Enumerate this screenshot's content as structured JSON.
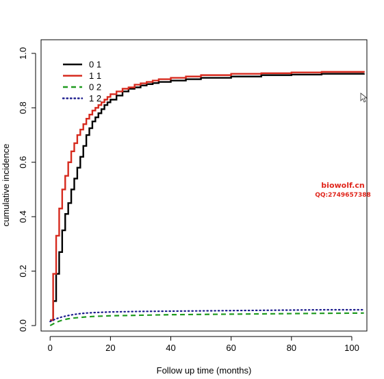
{
  "chart_data": {
    "type": "line",
    "title": "",
    "xlabel": "Follow up time (months)",
    "ylabel": "cumulative incidence",
    "xlim": [
      -3,
      105
    ],
    "ylim": [
      -0.02,
      1.05
    ],
    "xticks": [
      0,
      20,
      40,
      60,
      80,
      100
    ],
    "yticks": [
      0.0,
      0.2,
      0.4,
      0.6,
      0.8,
      1.0
    ],
    "ytick_labels": [
      "0.0",
      "0.2",
      "0.4",
      "0.6",
      "0.8",
      "1.0"
    ],
    "grid": false,
    "legend_position": "top-left",
    "series": [
      {
        "name": "0 1",
        "color": "#000000",
        "style": "solid-step",
        "x": [
          0,
          1,
          2,
          3,
          4,
          5,
          6,
          7,
          8,
          9,
          10,
          11,
          12,
          13,
          14,
          15,
          16,
          17,
          18,
          19,
          20,
          22,
          24,
          26,
          28,
          30,
          32,
          34,
          36,
          40,
          45,
          50,
          60,
          70,
          80,
          90,
          104
        ],
        "y": [
          0.02,
          0.09,
          0.19,
          0.27,
          0.35,
          0.41,
          0.45,
          0.5,
          0.54,
          0.58,
          0.62,
          0.66,
          0.7,
          0.725,
          0.75,
          0.765,
          0.78,
          0.795,
          0.81,
          0.82,
          0.83,
          0.845,
          0.86,
          0.87,
          0.875,
          0.882,
          0.887,
          0.891,
          0.895,
          0.9,
          0.905,
          0.91,
          0.915,
          0.92,
          0.922,
          0.925,
          0.927
        ]
      },
      {
        "name": "1 1",
        "color": "#d62a1e",
        "style": "solid-step",
        "x": [
          0,
          1,
          2,
          3,
          4,
          5,
          6,
          7,
          8,
          9,
          10,
          11,
          12,
          13,
          14,
          15,
          16,
          17,
          18,
          19,
          20,
          22,
          24,
          26,
          28,
          30,
          32,
          34,
          36,
          40,
          45,
          50,
          60,
          70,
          80,
          90,
          104
        ],
        "y": [
          0.02,
          0.19,
          0.33,
          0.43,
          0.5,
          0.55,
          0.6,
          0.64,
          0.67,
          0.7,
          0.72,
          0.74,
          0.76,
          0.775,
          0.79,
          0.8,
          0.81,
          0.82,
          0.83,
          0.84,
          0.85,
          0.86,
          0.87,
          0.875,
          0.885,
          0.89,
          0.895,
          0.9,
          0.905,
          0.91,
          0.915,
          0.92,
          0.925,
          0.927,
          0.93,
          0.932,
          0.935
        ]
      },
      {
        "name": "0 2",
        "color": "#1f9a1f",
        "style": "dashed",
        "x": [
          0,
          2,
          4,
          6,
          8,
          10,
          12,
          15,
          20,
          25,
          30,
          40,
          50,
          60,
          70,
          80,
          90,
          104
        ],
        "y": [
          0.0,
          0.012,
          0.02,
          0.025,
          0.028,
          0.03,
          0.032,
          0.034,
          0.036,
          0.037,
          0.038,
          0.04,
          0.041,
          0.042,
          0.043,
          0.044,
          0.045,
          0.046
        ]
      },
      {
        "name": "1 2",
        "color": "#1a1a8c",
        "style": "dotted",
        "x": [
          0,
          2,
          4,
          6,
          8,
          10,
          12,
          15,
          20,
          25,
          30,
          40,
          50,
          60,
          70,
          80,
          90,
          104
        ],
        "y": [
          0.015,
          0.025,
          0.032,
          0.037,
          0.041,
          0.044,
          0.046,
          0.048,
          0.05,
          0.051,
          0.052,
          0.053,
          0.054,
          0.055,
          0.056,
          0.057,
          0.058,
          0.058
        ]
      }
    ]
  },
  "watermark": {
    "title": "biowolf.cn",
    "subtitle": "QQ:2749657388",
    "color": "#e0251b"
  }
}
